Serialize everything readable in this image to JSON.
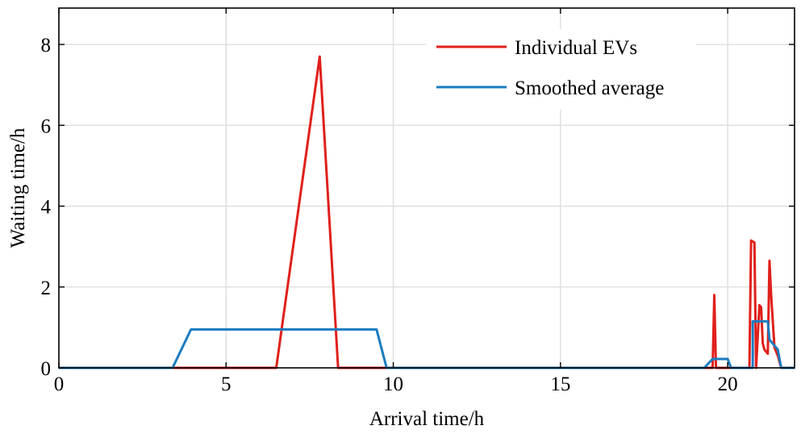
{
  "chart_data": {
    "type": "line",
    "title": "",
    "xlabel": "Arrival time/h",
    "ylabel": "Waiting time/h",
    "xlim": [
      0,
      22
    ],
    "ylim": [
      0,
      8.9
    ],
    "xticks": [
      0,
      5,
      10,
      15,
      20
    ],
    "yticks": [
      0,
      2,
      4,
      6,
      8
    ],
    "xtick_labels": [
      "0",
      "5",
      "10",
      "15",
      "20"
    ],
    "ytick_labels": [
      "0",
      "2",
      "4",
      "6",
      "8"
    ],
    "grid": true,
    "legend_position": "top-right",
    "series": [
      {
        "name": "Individual EVs",
        "color": "#e0201b",
        "x": [
          0,
          6.5,
          7.8,
          8.35,
          19.55,
          19.6,
          19.65,
          20.65,
          20.7,
          20.8,
          20.85,
          20.95,
          21.0,
          21.05,
          21.1,
          21.2,
          21.25,
          21.3,
          21.4,
          21.5,
          21.6,
          22
        ],
        "y": [
          0,
          0,
          7.7,
          0,
          0,
          1.8,
          0,
          0,
          3.15,
          3.1,
          0,
          1.55,
          1.5,
          0.6,
          0.45,
          0.35,
          2.65,
          1.8,
          0.5,
          0.3,
          0,
          0
        ]
      },
      {
        "name": "Smoothed average",
        "color": "#1a7bc0",
        "x": [
          0,
          3.4,
          3.95,
          9.5,
          9.8,
          19.3,
          19.55,
          20.0,
          20.1,
          20.75,
          20.75,
          21.2,
          21.25,
          21.5,
          21.6,
          22
        ],
        "y": [
          0,
          0,
          0.95,
          0.95,
          0,
          0,
          0.22,
          0.22,
          0,
          0,
          1.15,
          1.15,
          0.7,
          0.45,
          0,
          0
        ]
      }
    ]
  }
}
